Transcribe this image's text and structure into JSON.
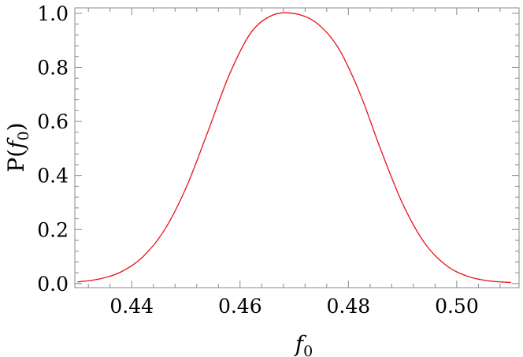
{
  "chart_data": {
    "type": "line",
    "title": "",
    "xlabel": "f0",
    "xlabel_main": "f",
    "xlabel_sub": "0",
    "ylabel": "P(f0)",
    "ylabel_prefix": "P(",
    "ylabel_var": "f",
    "ylabel_sub": "0",
    "ylabel_suffix": ")",
    "xlim": [
      0.4295,
      0.5115
    ],
    "ylim": [
      -0.015,
      1.02
    ],
    "xticks": [
      0.44,
      0.46,
      0.48,
      0.5
    ],
    "xtick_labels": [
      "0.44",
      "0.46",
      "0.48",
      "0.50"
    ],
    "yticks": [
      0.0,
      0.2,
      0.4,
      0.6,
      0.8,
      1.0
    ],
    "ytick_labels": [
      "0.0",
      "0.2",
      "0.4",
      "0.6",
      "0.8",
      "1.0"
    ],
    "grid": false,
    "series": [
      {
        "color": "#e8141c",
        "x": [
          0.43,
          0.434,
          0.438,
          0.442,
          0.446,
          0.45,
          0.454,
          0.458,
          0.462,
          0.466,
          0.47,
          0.474,
          0.478,
          0.482,
          0.486,
          0.49,
          0.494,
          0.498,
          0.502,
          0.506,
          0.51
        ],
        "y": [
          0.006,
          0.017,
          0.043,
          0.098,
          0.197,
          0.353,
          0.559,
          0.772,
          0.928,
          0.993,
          0.999,
          0.966,
          0.876,
          0.71,
          0.494,
          0.296,
          0.152,
          0.068,
          0.027,
          0.01,
          0.004
        ]
      }
    ]
  }
}
